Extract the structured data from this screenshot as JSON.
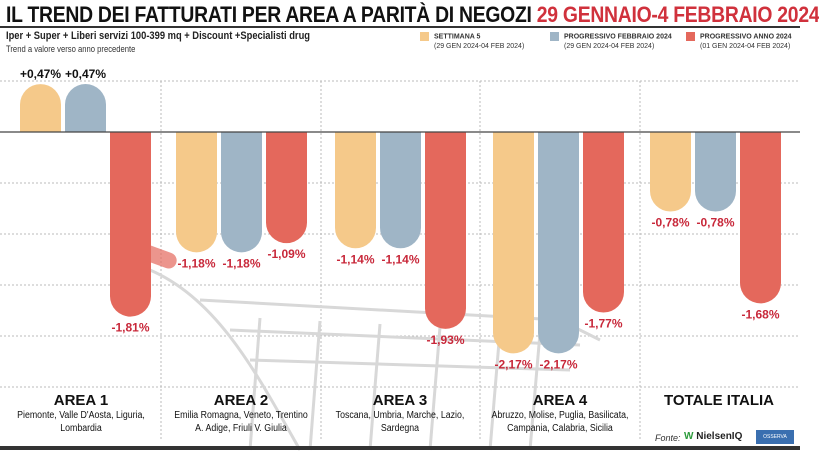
{
  "header": {
    "title": "IL TREND DEI FATTURATI PER AREA A PARITÀ DI NEGOZI",
    "title_period": "29 GENNAIO-4 FEBBRAIO 2024",
    "subtitle": "Iper + Super + Liberi servizi 100-399 mq + Discount +Specialisti drug",
    "note": "Trend a valore verso anno precedente"
  },
  "chart_data": {
    "type": "bar",
    "categories": [
      "AREA 1",
      "AREA 2",
      "AREA 3",
      "AREA 4",
      "TOTALE ITALIA"
    ],
    "category_subtitles": [
      "Piemonte, Valle D'Aosta, Liguria, Lombardia",
      "Emilia Romagna, Veneto, Trentino A. Adige, Friuli V. Giulia",
      "Toscana, Umbria, Marche, Lazio, Sardegna",
      "Abruzzo, Molise, Puglia, Basilicata, Campania, Calabria, Sicilia",
      ""
    ],
    "series": [
      {
        "name": "SETTIMANA 5",
        "range": "(29 GEN 2024-04 FEB 2024)",
        "color": "#f5c98a",
        "values": [
          0.47,
          -1.18,
          -1.14,
          -2.17,
          -0.78
        ],
        "labels": [
          "+0,47%",
          "-1,18%",
          "-1,14%",
          "-2,17%",
          "-0,78%"
        ]
      },
      {
        "name": "PROGRESSIVO FEBBRAIO 2024",
        "range": "(29 GEN 2024-04 FEB 2024)",
        "color": "#9fb5c6",
        "values": [
          0.47,
          -1.18,
          -1.14,
          -2.17,
          -0.78
        ],
        "labels": [
          "+0,47%",
          "-1,18%",
          "-1,14%",
          "-2,17%",
          "-0,78%"
        ]
      },
      {
        "name": "PROGRESSIVO ANNO 2024",
        "range": "(01 GEN 2024-04 FEB 2024)",
        "color": "#e4685c",
        "values": [
          -1.81,
          -1.09,
          -1.93,
          -1.77,
          -1.68
        ],
        "labels": [
          "-1,81%",
          "-1,09%",
          "-1,93%",
          "-1,77%",
          "-1,68%"
        ]
      }
    ],
    "ylim": [
      -2.5,
      0.5
    ],
    "grid": true,
    "legend": "top-right",
    "positive_label_color": "#111111",
    "negative_label_color": "#c8283a"
  },
  "footer": {
    "source_label": "Fonte:",
    "source_1": "NielsenIQ",
    "source_2": "OSSERVA ITALIA"
  }
}
